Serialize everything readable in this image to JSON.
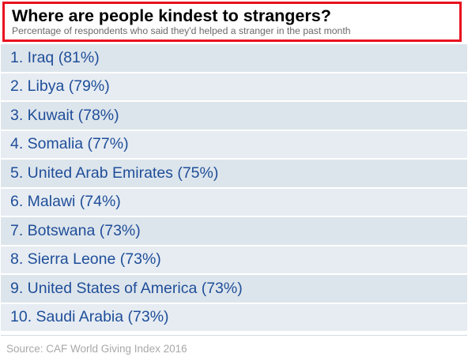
{
  "chart_data": {
    "type": "table",
    "title": "Where are people kindest to strangers?",
    "subtitle": "Percentage of respondents who said they'd helped a stranger in the past month",
    "rows": [
      {
        "label": "1. Iraq (81%)",
        "rank": 1,
        "country": "Iraq",
        "value": 81
      },
      {
        "label": "2. Libya (79%)",
        "rank": 2,
        "country": "Libya",
        "value": 79
      },
      {
        "label": "3. Kuwait (78%)",
        "rank": 3,
        "country": "Kuwait",
        "value": 78
      },
      {
        "label": "4. Somalia (77%)",
        "rank": 4,
        "country": "Somalia",
        "value": 77
      },
      {
        "label": "5. United Arab Emirates (75%)",
        "rank": 5,
        "country": "United Arab Emirates",
        "value": 75
      },
      {
        "label": "6. Malawi (74%)",
        "rank": 6,
        "country": "Malawi",
        "value": 74
      },
      {
        "label": "7. Botswana (73%)",
        "rank": 7,
        "country": "Botswana",
        "value": 73
      },
      {
        "label": "8. Sierra Leone (73%)",
        "rank": 8,
        "country": "Sierra Leone",
        "value": 73
      },
      {
        "label": "9. United States of America (73%)",
        "rank": 9,
        "country": "United States of America",
        "value": 73
      },
      {
        "label": "10. Saudi Arabia (73%)",
        "rank": 10,
        "country": "Saudi Arabia",
        "value": 73
      }
    ],
    "source": "Source: CAF World Giving Index 2016",
    "colors": {
      "title_border": "#e8121f",
      "row_text": "#1f4e99",
      "row_bg_odd": "#dde5ec",
      "row_bg_even": "#e6ecf2"
    }
  }
}
